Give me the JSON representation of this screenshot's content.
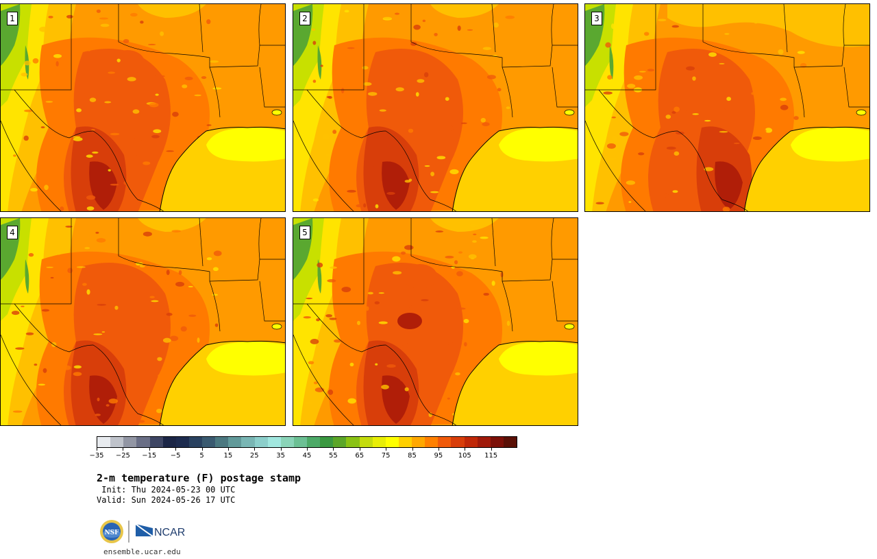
{
  "panels": [
    {
      "label": "1",
      "variant": 1
    },
    {
      "label": "2",
      "variant": 2
    },
    {
      "label": "3",
      "variant": 3
    },
    {
      "label": "4",
      "variant": 4
    },
    {
      "label": "5",
      "variant": 5
    }
  ],
  "colorbar": {
    "colors": [
      "#e8ebef",
      "#bfc3cb",
      "#9296a4",
      "#6a6f86",
      "#3e4664",
      "#1b2646",
      "#1d2b4e",
      "#2a4260",
      "#3a5a70",
      "#4b7880",
      "#629a9a",
      "#79b6b4",
      "#8ccfcb",
      "#a1e7df",
      "#8ad4b8",
      "#6cc094",
      "#4daa68",
      "#3a9840",
      "#5ba628",
      "#8ac214",
      "#c4dc0c",
      "#e8ee06",
      "#ffff00",
      "#ffd000",
      "#ffa800",
      "#ff8000",
      "#f05a0a",
      "#d83e0a",
      "#c02808",
      "#a01a0a",
      "#7c1008",
      "#5a1006"
    ],
    "ticks": [
      "−35",
      "−25",
      "−15",
      "−5",
      "5",
      "15",
      "25",
      "35",
      "45",
      "55",
      "65",
      "75",
      "85",
      "95",
      "105",
      "115"
    ],
    "min": -35,
    "max": 125
  },
  "title": "2-m temperature (F) postage stamp",
  "init": " Init: Thu 2024-05-23 00 UTC",
  "valid": "Valid: Sun 2024-05-26 17 UTC",
  "logos": {
    "nsf": "NSF",
    "ncar": "NCAR"
  },
  "footer_url": "ensemble.ucar.edu",
  "map_colors": {
    "land_base": "#ff9a00",
    "land_warm": "#ff7a00",
    "land_hot": "#f05a0a",
    "land_hotter": "#d83e0a",
    "land_hottest": "#b01e08",
    "land_cool": "#ffc000",
    "land_cooler": "#ffe400",
    "land_cold": "#c8e000",
    "mountain_green": "#5aa830",
    "gulf_main": "#ffd000",
    "gulf_yellow": "#ffff00",
    "border": "#000000"
  }
}
